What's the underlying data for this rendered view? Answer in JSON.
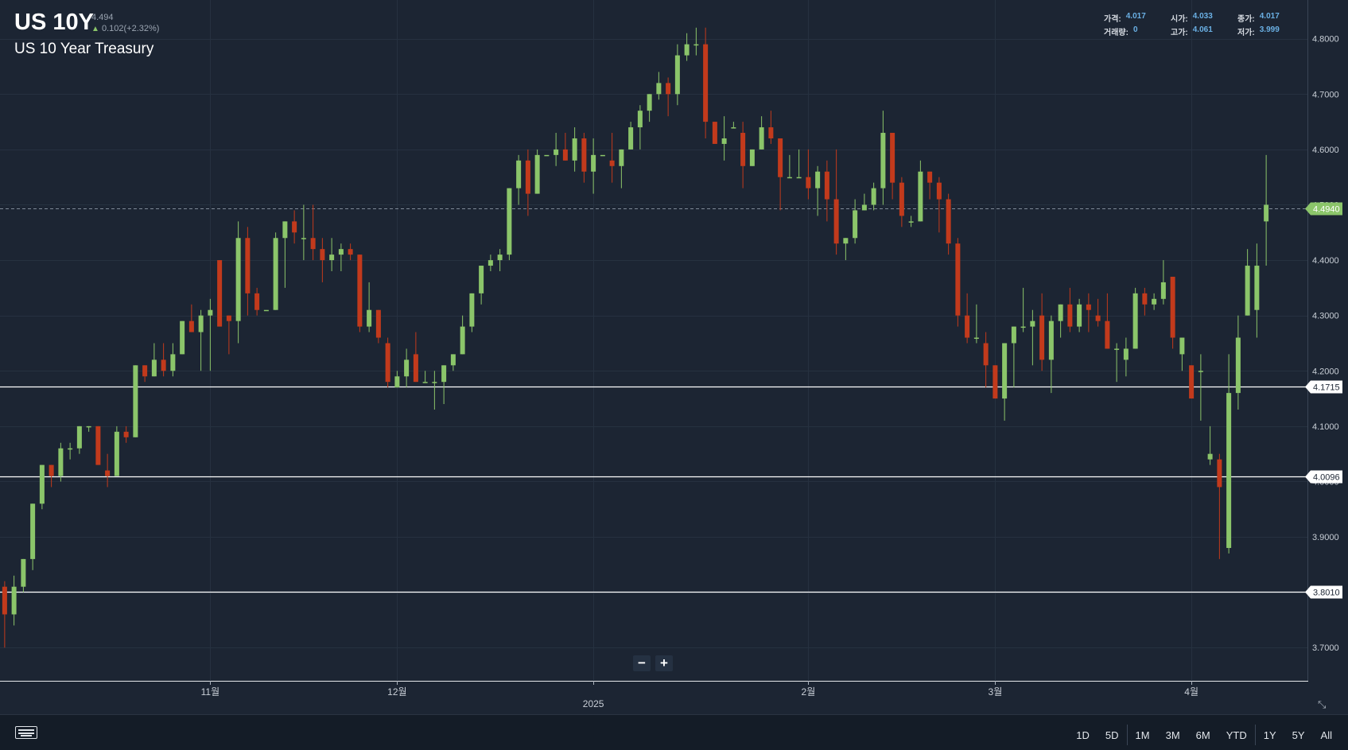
{
  "header": {
    "symbol": "US 10Y",
    "last_price": "4.494",
    "change": "0.102(+2.32%)",
    "name": "US 10 Year Treasury"
  },
  "ohlc": [
    {
      "label": "가격:",
      "value": "4.017"
    },
    {
      "label": "시가:",
      "value": "4.033"
    },
    {
      "label": "종가:",
      "value": "4.017"
    },
    {
      "label": "거래량:",
      "value": "0"
    },
    {
      "label": "고가:",
      "value": "4.061"
    },
    {
      "label": "저가:",
      "value": "3.999"
    }
  ],
  "zoom": {
    "minus": "−",
    "plus": "+"
  },
  "footer": {
    "ranges": [
      "1D",
      "5D",
      "1M",
      "3M",
      "6M",
      "YTD",
      "1Y",
      "5Y",
      "All"
    ]
  },
  "colors": {
    "background": "#1c2533",
    "up": "#8bc56a",
    "down": "#c23a1c",
    "grid": "#263140",
    "current_price": "#8bc56a"
  },
  "chart_data": {
    "type": "candlestick",
    "ylim": [
      3.64,
      4.87
    ],
    "y_ticks": [
      3.7,
      3.8,
      3.9,
      4.0,
      4.1,
      4.2,
      4.3,
      4.4,
      4.5,
      4.6,
      4.7,
      4.8
    ],
    "y_tick_labels": [
      "3.7000",
      "3.8000",
      "3.9000",
      "4.0000",
      "4.1000",
      "4.2000",
      "4.3000",
      "4.4000",
      "4.5000",
      "4.6000",
      "4.7000",
      "4.8000"
    ],
    "x_labels": [
      {
        "label": "11월",
        "index": 22
      },
      {
        "label": "12월",
        "index": 42
      },
      {
        "label": "2025",
        "index": 63
      },
      {
        "label": "2월",
        "index": 86
      },
      {
        "label": "3월",
        "index": 106
      },
      {
        "label": "4월",
        "index": 127
      }
    ],
    "x_range": [
      -0.5,
      139.5
    ],
    "current_price": {
      "value": 4.494,
      "label": "4.4940"
    },
    "levels": [
      {
        "value": 4.1715,
        "label": "4.1715"
      },
      {
        "value": 4.0096,
        "label": "4.0096"
      },
      {
        "value": 3.801,
        "label": "3.8010"
      }
    ],
    "candles": [
      [
        3.81,
        3.82,
        3.7,
        3.76
      ],
      [
        3.76,
        3.83,
        3.74,
        3.81
      ],
      [
        3.81,
        3.86,
        3.8,
        3.86
      ],
      [
        3.86,
        3.96,
        3.84,
        3.96
      ],
      [
        3.96,
        4.03,
        3.95,
        4.03
      ],
      [
        4.03,
        4.03,
        3.99,
        4.01
      ],
      [
        4.01,
        4.07,
        4.0,
        4.06
      ],
      [
        4.06,
        4.07,
        4.04,
        4.06
      ],
      [
        4.06,
        4.1,
        4.05,
        4.1
      ],
      [
        4.1,
        4.1,
        4.09,
        4.1
      ],
      [
        4.1,
        4.1,
        4.03,
        4.03
      ],
      [
        4.02,
        4.05,
        3.99,
        4.01
      ],
      [
        4.01,
        4.1,
        4.01,
        4.09
      ],
      [
        4.09,
        4.1,
        4.07,
        4.08
      ],
      [
        4.08,
        4.21,
        4.08,
        4.21
      ],
      [
        4.21,
        4.21,
        4.18,
        4.19
      ],
      [
        4.19,
        4.25,
        4.19,
        4.22
      ],
      [
        4.22,
        4.25,
        4.19,
        4.2
      ],
      [
        4.2,
        4.25,
        4.19,
        4.23
      ],
      [
        4.23,
        4.29,
        4.23,
        4.29
      ],
      [
        4.29,
        4.32,
        4.27,
        4.27
      ],
      [
        4.27,
        4.31,
        4.2,
        4.3
      ],
      [
        4.3,
        4.33,
        4.2,
        4.31
      ],
      [
        4.4,
        4.4,
        4.28,
        4.28
      ],
      [
        4.3,
        4.3,
        4.23,
        4.29
      ],
      [
        4.29,
        4.47,
        4.25,
        4.44
      ],
      [
        4.44,
        4.46,
        4.3,
        4.34
      ],
      [
        4.34,
        4.35,
        4.3,
        4.31
      ],
      [
        4.31,
        4.31,
        4.31,
        4.31
      ],
      [
        4.31,
        4.45,
        4.31,
        4.44
      ],
      [
        4.44,
        4.47,
        4.35,
        4.47
      ],
      [
        4.47,
        4.49,
        4.43,
        4.45
      ],
      [
        4.44,
        4.5,
        4.4,
        4.44
      ],
      [
        4.44,
        4.5,
        4.4,
        4.42
      ],
      [
        4.42,
        4.44,
        4.36,
        4.4
      ],
      [
        4.4,
        4.44,
        4.38,
        4.41
      ],
      [
        4.41,
        4.43,
        4.38,
        4.42
      ],
      [
        4.42,
        4.43,
        4.4,
        4.41
      ],
      [
        4.41,
        4.41,
        4.27,
        4.28
      ],
      [
        4.28,
        4.36,
        4.27,
        4.31
      ],
      [
        4.31,
        4.31,
        4.25,
        4.26
      ],
      [
        4.25,
        4.26,
        4.17,
        4.18
      ],
      [
        4.17,
        4.2,
        4.17,
        4.19
      ],
      [
        4.19,
        4.24,
        4.17,
        4.22
      ],
      [
        4.23,
        4.27,
        4.18,
        4.18
      ],
      [
        4.18,
        4.2,
        4.18,
        4.18
      ],
      [
        4.18,
        4.2,
        4.13,
        4.18
      ],
      [
        4.18,
        4.21,
        4.14,
        4.21
      ],
      [
        4.21,
        4.23,
        4.2,
        4.23
      ],
      [
        4.23,
        4.3,
        4.23,
        4.28
      ],
      [
        4.28,
        4.34,
        4.27,
        4.34
      ],
      [
        4.34,
        4.39,
        4.32,
        4.39
      ],
      [
        4.39,
        4.41,
        4.38,
        4.4
      ],
      [
        4.4,
        4.42,
        4.38,
        4.41
      ],
      [
        4.41,
        4.53,
        4.4,
        4.53
      ],
      [
        4.53,
        4.59,
        4.5,
        4.58
      ],
      [
        4.58,
        4.6,
        4.48,
        4.52
      ],
      [
        4.52,
        4.6,
        4.52,
        4.59
      ],
      [
        4.59,
        4.59,
        4.59,
        4.59
      ],
      [
        4.59,
        4.63,
        4.57,
        4.6
      ],
      [
        4.6,
        4.63,
        4.58,
        4.58
      ],
      [
        4.58,
        4.64,
        4.56,
        4.62
      ],
      [
        4.62,
        4.63,
        4.54,
        4.56
      ],
      [
        4.56,
        4.62,
        4.52,
        4.59
      ],
      [
        4.59,
        4.59,
        4.59,
        4.59
      ],
      [
        4.58,
        4.63,
        4.54,
        4.57
      ],
      [
        4.57,
        4.6,
        4.53,
        4.6
      ],
      [
        4.6,
        4.65,
        4.6,
        4.64
      ],
      [
        4.64,
        4.68,
        4.6,
        4.67
      ],
      [
        4.67,
        4.7,
        4.65,
        4.7
      ],
      [
        4.7,
        4.74,
        4.69,
        4.72
      ],
      [
        4.72,
        4.73,
        4.66,
        4.7
      ],
      [
        4.7,
        4.79,
        4.68,
        4.77
      ],
      [
        4.77,
        4.81,
        4.76,
        4.79
      ],
      [
        4.79,
        4.82,
        4.77,
        4.79
      ],
      [
        4.79,
        4.82,
        4.62,
        4.65
      ],
      [
        4.65,
        4.65,
        4.61,
        4.61
      ],
      [
        4.61,
        4.66,
        4.58,
        4.62
      ],
      [
        4.64,
        4.65,
        4.64,
        4.64
      ],
      [
        4.63,
        4.65,
        4.53,
        4.57
      ],
      [
        4.57,
        4.6,
        4.57,
        4.6
      ],
      [
        4.6,
        4.66,
        4.6,
        4.64
      ],
      [
        4.64,
        4.67,
        4.61,
        4.62
      ],
      [
        4.62,
        4.62,
        4.49,
        4.55
      ],
      [
        4.55,
        4.59,
        4.55,
        4.55
      ],
      [
        4.55,
        4.6,
        4.55,
        4.55
      ],
      [
        4.55,
        4.6,
        4.51,
        4.53
      ],
      [
        4.53,
        4.57,
        4.48,
        4.56
      ],
      [
        4.56,
        4.58,
        4.47,
        4.51
      ],
      [
        4.51,
        4.6,
        4.41,
        4.43
      ],
      [
        4.43,
        4.44,
        4.4,
        4.44
      ],
      [
        4.44,
        4.51,
        4.43,
        4.49
      ],
      [
        4.49,
        4.52,
        4.49,
        4.5
      ],
      [
        4.5,
        4.54,
        4.49,
        4.53
      ],
      [
        4.53,
        4.67,
        4.5,
        4.63
      ],
      [
        4.63,
        4.63,
        4.51,
        4.54
      ],
      [
        4.54,
        4.55,
        4.46,
        4.48
      ],
      [
        4.47,
        4.48,
        4.46,
        4.47
      ],
      [
        4.47,
        4.58,
        4.47,
        4.56
      ],
      [
        4.56,
        4.56,
        4.51,
        4.54
      ],
      [
        4.54,
        4.55,
        4.45,
        4.51
      ],
      [
        4.51,
        4.52,
        4.41,
        4.43
      ],
      [
        4.43,
        4.44,
        4.28,
        4.3
      ],
      [
        4.3,
        4.34,
        4.25,
        4.26
      ],
      [
        4.26,
        4.32,
        4.25,
        4.26
      ],
      [
        4.25,
        4.27,
        4.17,
        4.21
      ],
      [
        4.21,
        4.21,
        4.15,
        4.15
      ],
      [
        4.15,
        4.25,
        4.11,
        4.25
      ],
      [
        4.25,
        4.28,
        4.17,
        4.28
      ],
      [
        4.28,
        4.35,
        4.27,
        4.28
      ],
      [
        4.28,
        4.31,
        4.21,
        4.29
      ],
      [
        4.3,
        4.34,
        4.2,
        4.22
      ],
      [
        4.22,
        4.3,
        4.16,
        4.29
      ],
      [
        4.29,
        4.32,
        4.26,
        4.32
      ],
      [
        4.32,
        4.35,
        4.27,
        4.28
      ],
      [
        4.28,
        4.33,
        4.27,
        4.32
      ],
      [
        4.32,
        4.34,
        4.27,
        4.31
      ],
      [
        4.3,
        4.33,
        4.28,
        4.29
      ],
      [
        4.29,
        4.34,
        4.24,
        4.24
      ],
      [
        4.24,
        4.25,
        4.18,
        4.24
      ],
      [
        4.22,
        4.26,
        4.19,
        4.24
      ],
      [
        4.24,
        4.35,
        4.24,
        4.34
      ],
      [
        4.34,
        4.35,
        4.3,
        4.32
      ],
      [
        4.32,
        4.34,
        4.31,
        4.33
      ],
      [
        4.33,
        4.4,
        4.32,
        4.36
      ],
      [
        4.37,
        4.37,
        4.24,
        4.26
      ],
      [
        4.23,
        4.26,
        4.2,
        4.26
      ],
      [
        4.21,
        4.21,
        4.15,
        4.15
      ],
      [
        4.2,
        4.23,
        4.11,
        4.2
      ],
      [
        4.04,
        4.1,
        4.03,
        4.05
      ],
      [
        4.04,
        4.05,
        3.86,
        3.99
      ],
      [
        3.88,
        4.23,
        3.87,
        4.16
      ],
      [
        4.16,
        4.3,
        4.13,
        4.26
      ],
      [
        4.3,
        4.42,
        4.3,
        4.39
      ],
      [
        4.31,
        4.43,
        4.26,
        4.39
      ],
      [
        4.47,
        4.59,
        4.39,
        4.5
      ]
    ]
  }
}
